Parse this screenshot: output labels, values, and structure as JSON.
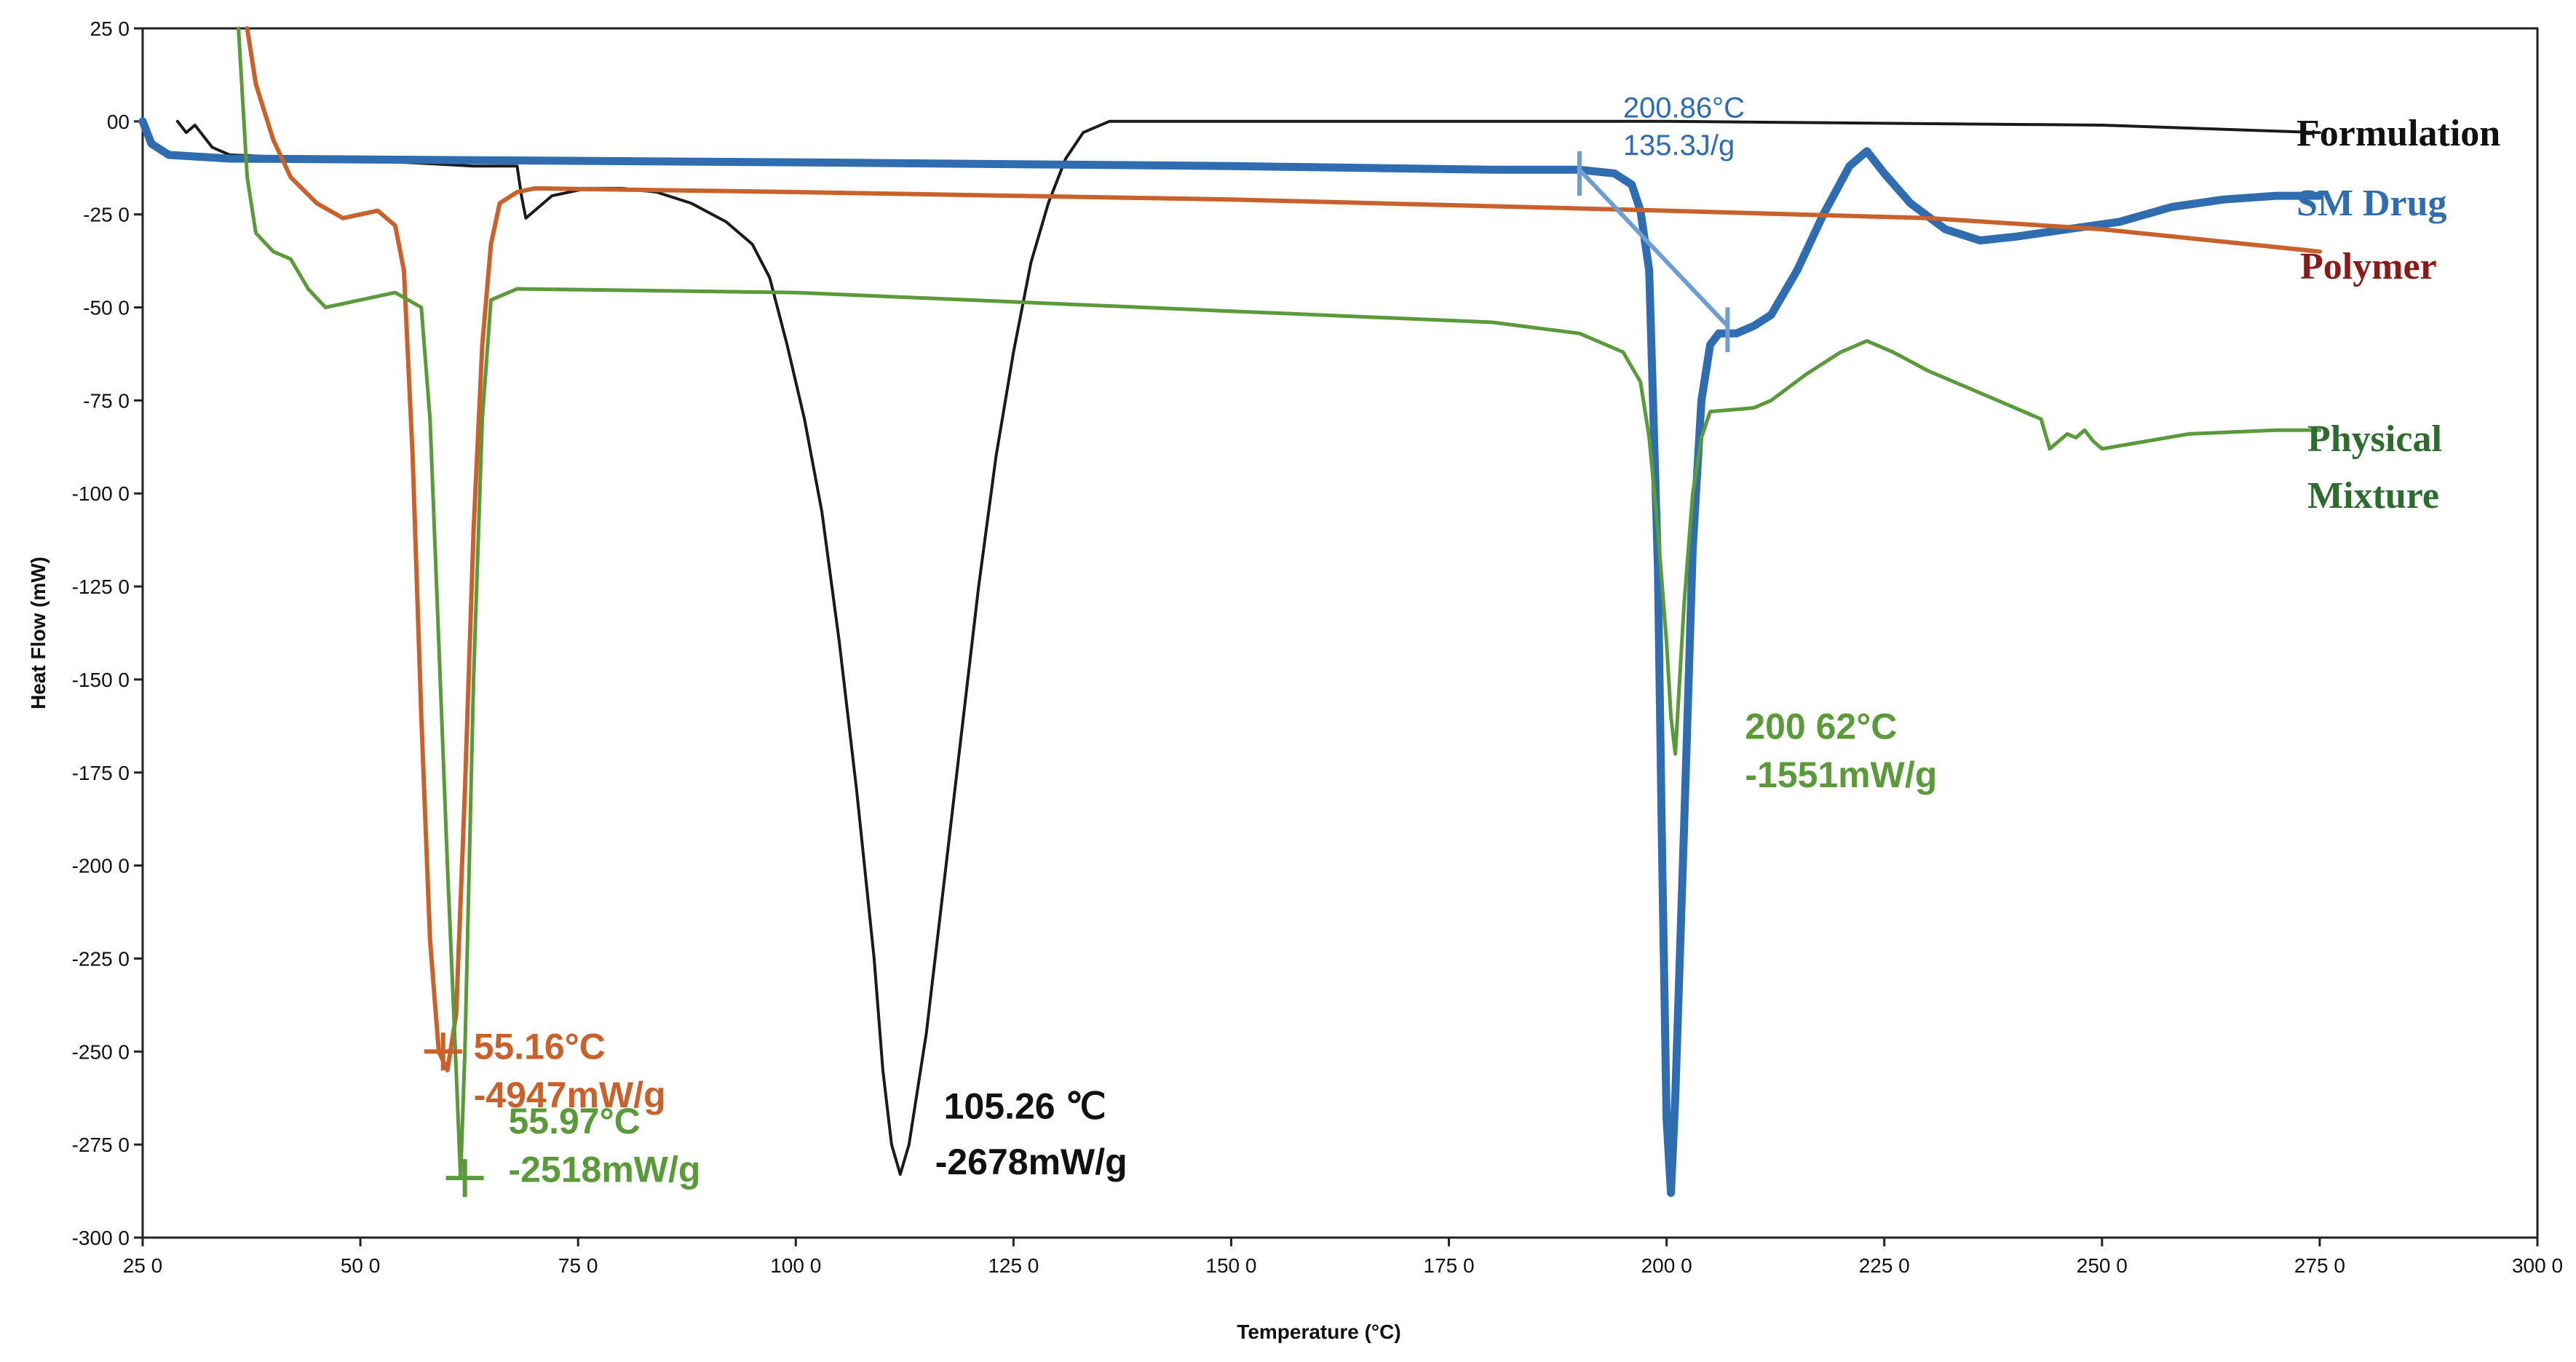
{
  "chart_data": {
    "type": "line",
    "title": "",
    "xlabel": "Temperature (°C)",
    "ylabel": "Heat Flow (mW)",
    "xlim": [
      25,
      300
    ],
    "ylim": [
      -300,
      25
    ],
    "x_ticks": [
      25,
      50,
      75,
      100,
      125,
      150,
      175,
      200,
      225,
      250,
      275,
      300
    ],
    "x_tick_labels": [
      "25 0",
      "50 0",
      "75 0",
      "100 0",
      "125 0",
      "150 0",
      "175 0",
      "200 0",
      "225 0",
      "250 0",
      "275 0",
      "300 0"
    ],
    "y_ticks": [
      25,
      0,
      -25,
      -50,
      -75,
      -100,
      -125,
      -150,
      -175,
      -200,
      -225,
      -250,
      -275,
      -300
    ],
    "y_tick_labels": [
      "25 0",
      "00",
      "-25 0",
      "-50 0",
      "-75 0",
      "-100 0",
      "-125 0",
      "-150 0",
      "-175 0",
      "-200 0",
      "-225 0",
      "-250 0",
      "-275 0",
      "-300 0"
    ],
    "series": [
      {
        "name": "Formulation",
        "color": "#1a1a1a",
        "points": [
          [
            29,
            0
          ],
          [
            30,
            -3
          ],
          [
            31,
            -1
          ],
          [
            32,
            -4
          ],
          [
            33,
            -7
          ],
          [
            35,
            -9
          ],
          [
            45,
            -10
          ],
          [
            55,
            -11
          ],
          [
            63,
            -12
          ],
          [
            68,
            -12
          ],
          [
            68.5,
            -20
          ],
          [
            69,
            -26
          ],
          [
            70,
            -24
          ],
          [
            72,
            -20
          ],
          [
            76,
            -18
          ],
          [
            80,
            -18
          ],
          [
            84,
            -19
          ],
          [
            88,
            -22
          ],
          [
            92,
            -27
          ],
          [
            95,
            -33
          ],
          [
            97,
            -42
          ],
          [
            99,
            -60
          ],
          [
            101,
            -80
          ],
          [
            103,
            -105
          ],
          [
            105,
            -140
          ],
          [
            107,
            -180
          ],
          [
            109,
            -225
          ],
          [
            110,
            -255
          ],
          [
            111,
            -275
          ],
          [
            112,
            -283
          ],
          [
            113,
            -275
          ],
          [
            115,
            -245
          ],
          [
            117,
            -205
          ],
          [
            119,
            -165
          ],
          [
            121,
            -125
          ],
          [
            123,
            -90
          ],
          [
            125,
            -62
          ],
          [
            127,
            -38
          ],
          [
            129,
            -22
          ],
          [
            131,
            -10
          ],
          [
            133,
            -3
          ],
          [
            136,
            0
          ],
          [
            150,
            0
          ],
          [
            200,
            0
          ],
          [
            250,
            -1
          ],
          [
            275,
            -3
          ]
        ]
      },
      {
        "name": "SM Drug",
        "color": "#2f6db0",
        "points": [
          [
            25,
            0
          ],
          [
            26,
            -6
          ],
          [
            28,
            -9
          ],
          [
            35,
            -10
          ],
          [
            100,
            -11
          ],
          [
            150,
            -12
          ],
          [
            180,
            -13
          ],
          [
            190,
            -13
          ],
          [
            194,
            -14
          ],
          [
            196,
            -17
          ],
          [
            197,
            -24
          ],
          [
            198,
            -40
          ],
          [
            199,
            -120
          ],
          [
            199.5,
            -200
          ],
          [
            200,
            -268
          ],
          [
            200.5,
            -288
          ],
          [
            201,
            -262
          ],
          [
            202,
            -190
          ],
          [
            203,
            -115
          ],
          [
            204,
            -75
          ],
          [
            205,
            -60
          ],
          [
            206,
            -57
          ],
          [
            208,
            -57
          ],
          [
            210,
            -55
          ],
          [
            212,
            -52
          ],
          [
            215,
            -40
          ],
          [
            218,
            -25
          ],
          [
            221,
            -12
          ],
          [
            223,
            -8
          ],
          [
            225,
            -14
          ],
          [
            228,
            -22
          ],
          [
            232,
            -29
          ],
          [
            236,
            -32
          ],
          [
            240,
            -31
          ],
          [
            246,
            -29
          ],
          [
            252,
            -27
          ],
          [
            258,
            -23
          ],
          [
            264,
            -21
          ],
          [
            270,
            -20
          ],
          [
            275,
            -20
          ]
        ]
      },
      {
        "name": "Polymer",
        "color": "#c8612b",
        "points": [
          [
            37,
            25
          ],
          [
            38,
            10
          ],
          [
            40,
            -5
          ],
          [
            42,
            -15
          ],
          [
            45,
            -22
          ],
          [
            48,
            -26
          ],
          [
            50,
            -25
          ],
          [
            52,
            -24
          ],
          [
            54,
            -28
          ],
          [
            55,
            -40
          ],
          [
            56,
            -90
          ],
          [
            57,
            -160
          ],
          [
            58,
            -220
          ],
          [
            59,
            -250
          ],
          [
            60,
            -255
          ],
          [
            61,
            -240
          ],
          [
            62,
            -180
          ],
          [
            63,
            -110
          ],
          [
            64,
            -60
          ],
          [
            65,
            -33
          ],
          [
            66,
            -22
          ],
          [
            68,
            -19
          ],
          [
            70,
            -18
          ],
          [
            100,
            -19
          ],
          [
            150,
            -21
          ],
          [
            200,
            -24
          ],
          [
            230,
            -26
          ],
          [
            250,
            -29
          ],
          [
            275,
            -35
          ]
        ]
      },
      {
        "name": "Physical Mixture",
        "color": "#5a9a3a",
        "points": [
          [
            36,
            25
          ],
          [
            36.5,
            5
          ],
          [
            37,
            -15
          ],
          [
            38,
            -30
          ],
          [
            40,
            -35
          ],
          [
            42,
            -37
          ],
          [
            44,
            -45
          ],
          [
            46,
            -50
          ],
          [
            50,
            -48
          ],
          [
            54,
            -46
          ],
          [
            57,
            -50
          ],
          [
            58,
            -80
          ],
          [
            59,
            -140
          ],
          [
            60,
            -200
          ],
          [
            61,
            -255
          ],
          [
            61.5,
            -284
          ],
          [
            62,
            -250
          ],
          [
            63,
            -150
          ],
          [
            64,
            -80
          ],
          [
            65,
            -48
          ],
          [
            68,
            -45
          ],
          [
            100,
            -46
          ],
          [
            150,
            -51
          ],
          [
            180,
            -54
          ],
          [
            190,
            -57
          ],
          [
            195,
            -62
          ],
          [
            197,
            -70
          ],
          [
            198,
            -85
          ],
          [
            199,
            -110
          ],
          [
            200,
            -140
          ],
          [
            200.5,
            -160
          ],
          [
            201,
            -170
          ],
          [
            202,
            -130
          ],
          [
            203,
            -100
          ],
          [
            204,
            -85
          ],
          [
            205,
            -78
          ],
          [
            210,
            -77
          ],
          [
            212,
            -75
          ],
          [
            216,
            -68
          ],
          [
            220,
            -62
          ],
          [
            223,
            -59
          ],
          [
            226,
            -62
          ],
          [
            230,
            -67
          ],
          [
            235,
            -72
          ],
          [
            240,
            -77
          ],
          [
            243,
            -80
          ],
          [
            244,
            -88
          ],
          [
            245,
            -86
          ],
          [
            246,
            -84
          ],
          [
            247,
            -85
          ],
          [
            248,
            -83
          ],
          [
            249,
            -86
          ],
          [
            250,
            -88
          ],
          [
            255,
            -86
          ],
          [
            260,
            -84
          ],
          [
            270,
            -83
          ],
          [
            275,
            -83
          ]
        ]
      }
    ],
    "legend": [
      {
        "label": "Formulation",
        "color": "#111111"
      },
      {
        "label": "SM Drug",
        "color": "#2f6db0"
      },
      {
        "label": "Polymer",
        "color": "#8b1a1a"
      },
      {
        "label": "Physical",
        "color": "#2e6b2e"
      },
      {
        "label": "Mixture",
        "color": "#2e6b2e"
      }
    ],
    "annotations": [
      {
        "id": "drug-temp",
        "text": "200.86°C",
        "x": 195,
        "y": 1,
        "color": "#2f6db0",
        "size": "small"
      },
      {
        "id": "drug-enthalpy",
        "text": "135.3J/g",
        "x": 195,
        "y": -9,
        "color": "#2f6db0",
        "size": "small"
      },
      {
        "id": "formulation-temp",
        "text": "105.26 ℃",
        "x": 117,
        "y": -268,
        "color": "#111111",
        "size": "large"
      },
      {
        "id": "formulation-flow",
        "text": "-2678mW/g",
        "x": 116,
        "y": -283,
        "color": "#111111",
        "size": "large"
      },
      {
        "id": "polymer-temp",
        "text": "55.16°C",
        "x": 63,
        "y": -252,
        "color": "#c8612b",
        "size": "large"
      },
      {
        "id": "polymer-flow",
        "text": "-4947mW/g",
        "x": 63,
        "y": -265,
        "color": "#c8612b",
        "size": "large"
      },
      {
        "id": "mixture-temp",
        "text": "55.97°C",
        "x": 67,
        "y": -272,
        "color": "#5a9a3a",
        "size": "large"
      },
      {
        "id": "mixture-flow",
        "text": "-2518mW/g",
        "x": 67,
        "y": -285,
        "color": "#5a9a3a",
        "size": "large"
      },
      {
        "id": "mixture-peak-temp",
        "text": "200 62°C",
        "x": 209,
        "y": -166,
        "color": "#5a9a3a",
        "size": "large"
      },
      {
        "id": "mixture-peak-flow",
        "text": "-1551mW/g",
        "x": 209,
        "y": -179,
        "color": "#5a9a3a",
        "size": "large"
      }
    ],
    "markers": [
      {
        "x": 59.5,
        "y": -250,
        "color": "#c8612b"
      },
      {
        "x": 62,
        "y": -284,
        "color": "#5a9a3a"
      }
    ]
  }
}
